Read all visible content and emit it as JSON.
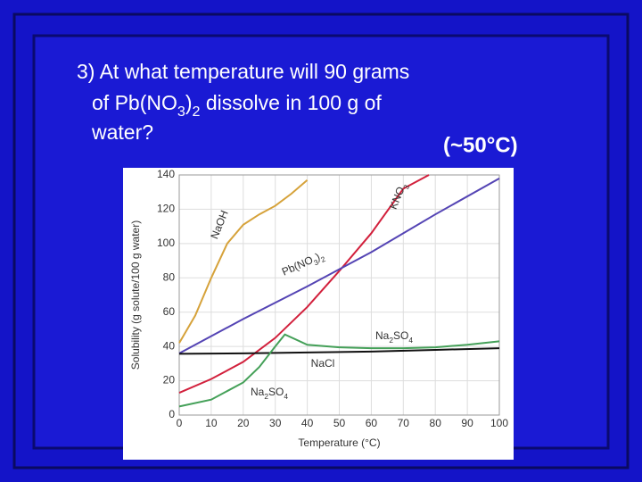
{
  "question": {
    "line1": "3) At what temperature will 90 grams",
    "line2": "of Pb(NO3)2 dissolve in 100 g of",
    "line3": "water?",
    "answer": "(~50°C)"
  },
  "chart_data": {
    "type": "line",
    "xlabel": "Temperature (°C)",
    "ylabel": "Solubility (g solute/100 g water)",
    "xlim": [
      0,
      100
    ],
    "ylim": [
      0,
      140
    ],
    "xticks": [
      0,
      10,
      20,
      30,
      40,
      50,
      60,
      70,
      80,
      90,
      100
    ],
    "yticks": [
      0,
      20,
      40,
      60,
      80,
      100,
      120,
      140
    ],
    "grid": true,
    "series": [
      {
        "name": "NaOH",
        "color": "#d6a23a",
        "x": [
          0,
          5,
          10,
          15,
          20,
          25,
          30,
          35,
          40
        ],
        "values": [
          42,
          58,
          80,
          100,
          111,
          117,
          122,
          129,
          137
        ]
      },
      {
        "name": "KNO3",
        "color": "#d2203c",
        "x": [
          0,
          10,
          20,
          30,
          40,
          50,
          60,
          70,
          78
        ],
        "values": [
          13,
          21,
          31,
          45,
          63,
          84,
          106,
          132,
          140
        ]
      },
      {
        "name": "Pb(NO3)2",
        "color": "#5444b4",
        "x": [
          0,
          20,
          40,
          60,
          80,
          100
        ],
        "values": [
          36,
          56,
          75,
          95,
          117,
          138
        ]
      },
      {
        "name": "NaCl",
        "color": "#111111",
        "x": [
          0,
          20,
          40,
          60,
          80,
          100
        ],
        "values": [
          35.7,
          36,
          36.5,
          37,
          38,
          39
        ]
      },
      {
        "name": "Na2SO4",
        "color": "#44a058",
        "x": [
          0,
          10,
          20,
          25,
          30,
          33,
          40,
          50,
          60,
          70,
          80,
          90,
          100
        ],
        "values": [
          5,
          9,
          19,
          28,
          40,
          47,
          41,
          39.5,
          39,
          39,
          39.5,
          41,
          43
        ]
      }
    ]
  }
}
